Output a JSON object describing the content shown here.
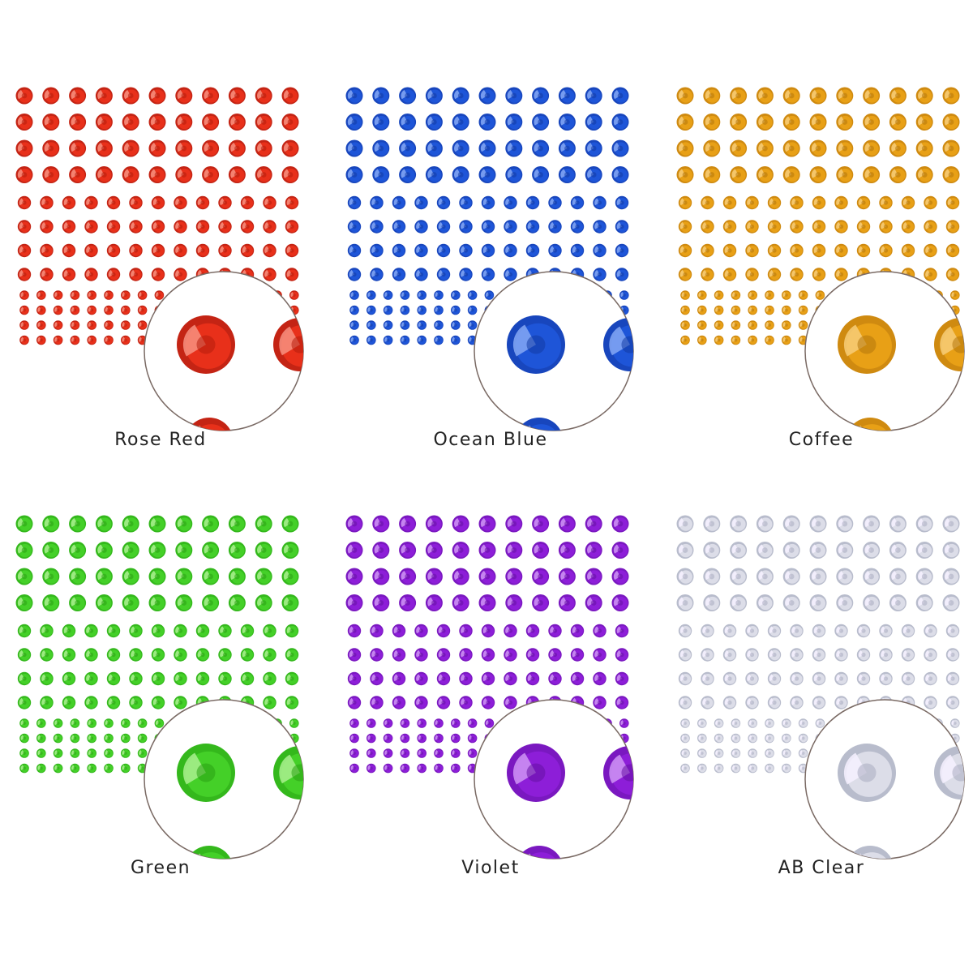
{
  "swatches": [
    {
      "id": "rose-red",
      "label": "Rose Red",
      "base": "#e8301a",
      "dark": "#b51e0d",
      "light": "#f79080",
      "ring": "#c42414"
    },
    {
      "id": "ocean-blue",
      "label": "Ocean Blue",
      "base": "#1e55d8",
      "dark": "#123aa4",
      "light": "#85a8f5",
      "ring": "#1846bd"
    },
    {
      "id": "coffee",
      "label": "Coffee",
      "base": "#e8a016",
      "dark": "#b2760c",
      "light": "#f7cd78",
      "ring": "#cf8a10"
    },
    {
      "id": "green",
      "label": "Green",
      "base": "#44d028",
      "dark": "#29a012",
      "light": "#aaf08f",
      "ring": "#34b81c"
    },
    {
      "id": "violet",
      "label": "Violet",
      "base": "#8d1ed8",
      "dark": "#6610a4",
      "light": "#cf95f5",
      "ring": "#7a18c0"
    },
    {
      "id": "ab-clear",
      "label": "AB Clear",
      "base": "#dcdde8",
      "dark": "#a9acbf",
      "light": "#f6f1ff",
      "ring": "#b8bccc"
    }
  ]
}
